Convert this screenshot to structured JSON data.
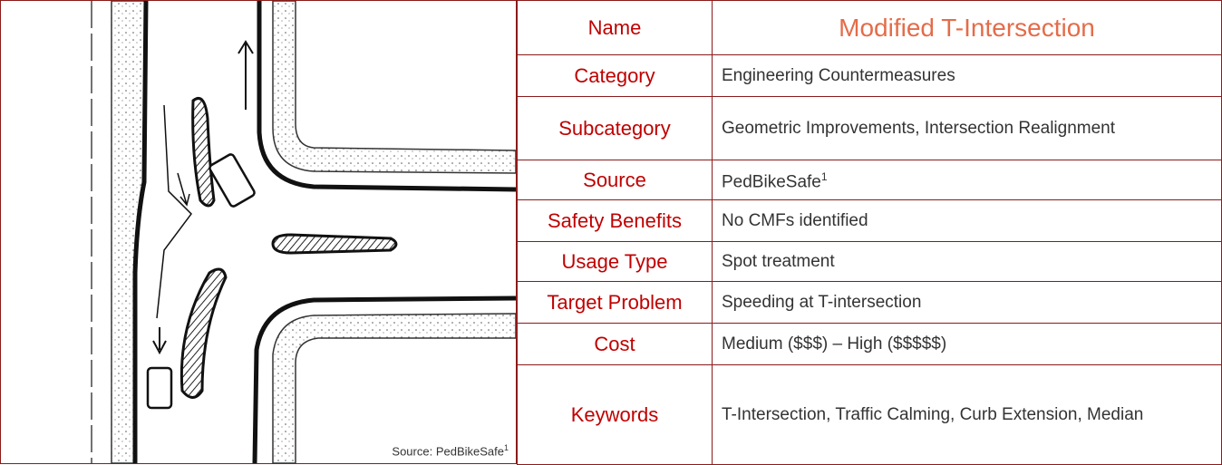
{
  "image_caption": {
    "text": "Source: PedBikeSafe",
    "sup": "1"
  },
  "table": {
    "rows": [
      {
        "label": "Name",
        "value": "Modified T-Intersection"
      },
      {
        "label": "Category",
        "value": "Engineering Countermeasures"
      },
      {
        "label": "Subcategory",
        "value": "Geometric Improvements, Intersection Realignment"
      },
      {
        "label": "Source",
        "value": "PedBikeSafe",
        "sup": "1"
      },
      {
        "label": "Safety Benefits",
        "value": "No CMFs identified"
      },
      {
        "label": "Usage Type",
        "value": "Spot treatment"
      },
      {
        "label": "Target Problem",
        "value": "Speeding at T-intersection"
      },
      {
        "label": "Cost",
        "value": "Medium ($$$) – High ($$$$$)"
      },
      {
        "label": "Keywords",
        "value": "T-Intersection, Traffic Calming, Curb Extension, Median"
      }
    ]
  }
}
